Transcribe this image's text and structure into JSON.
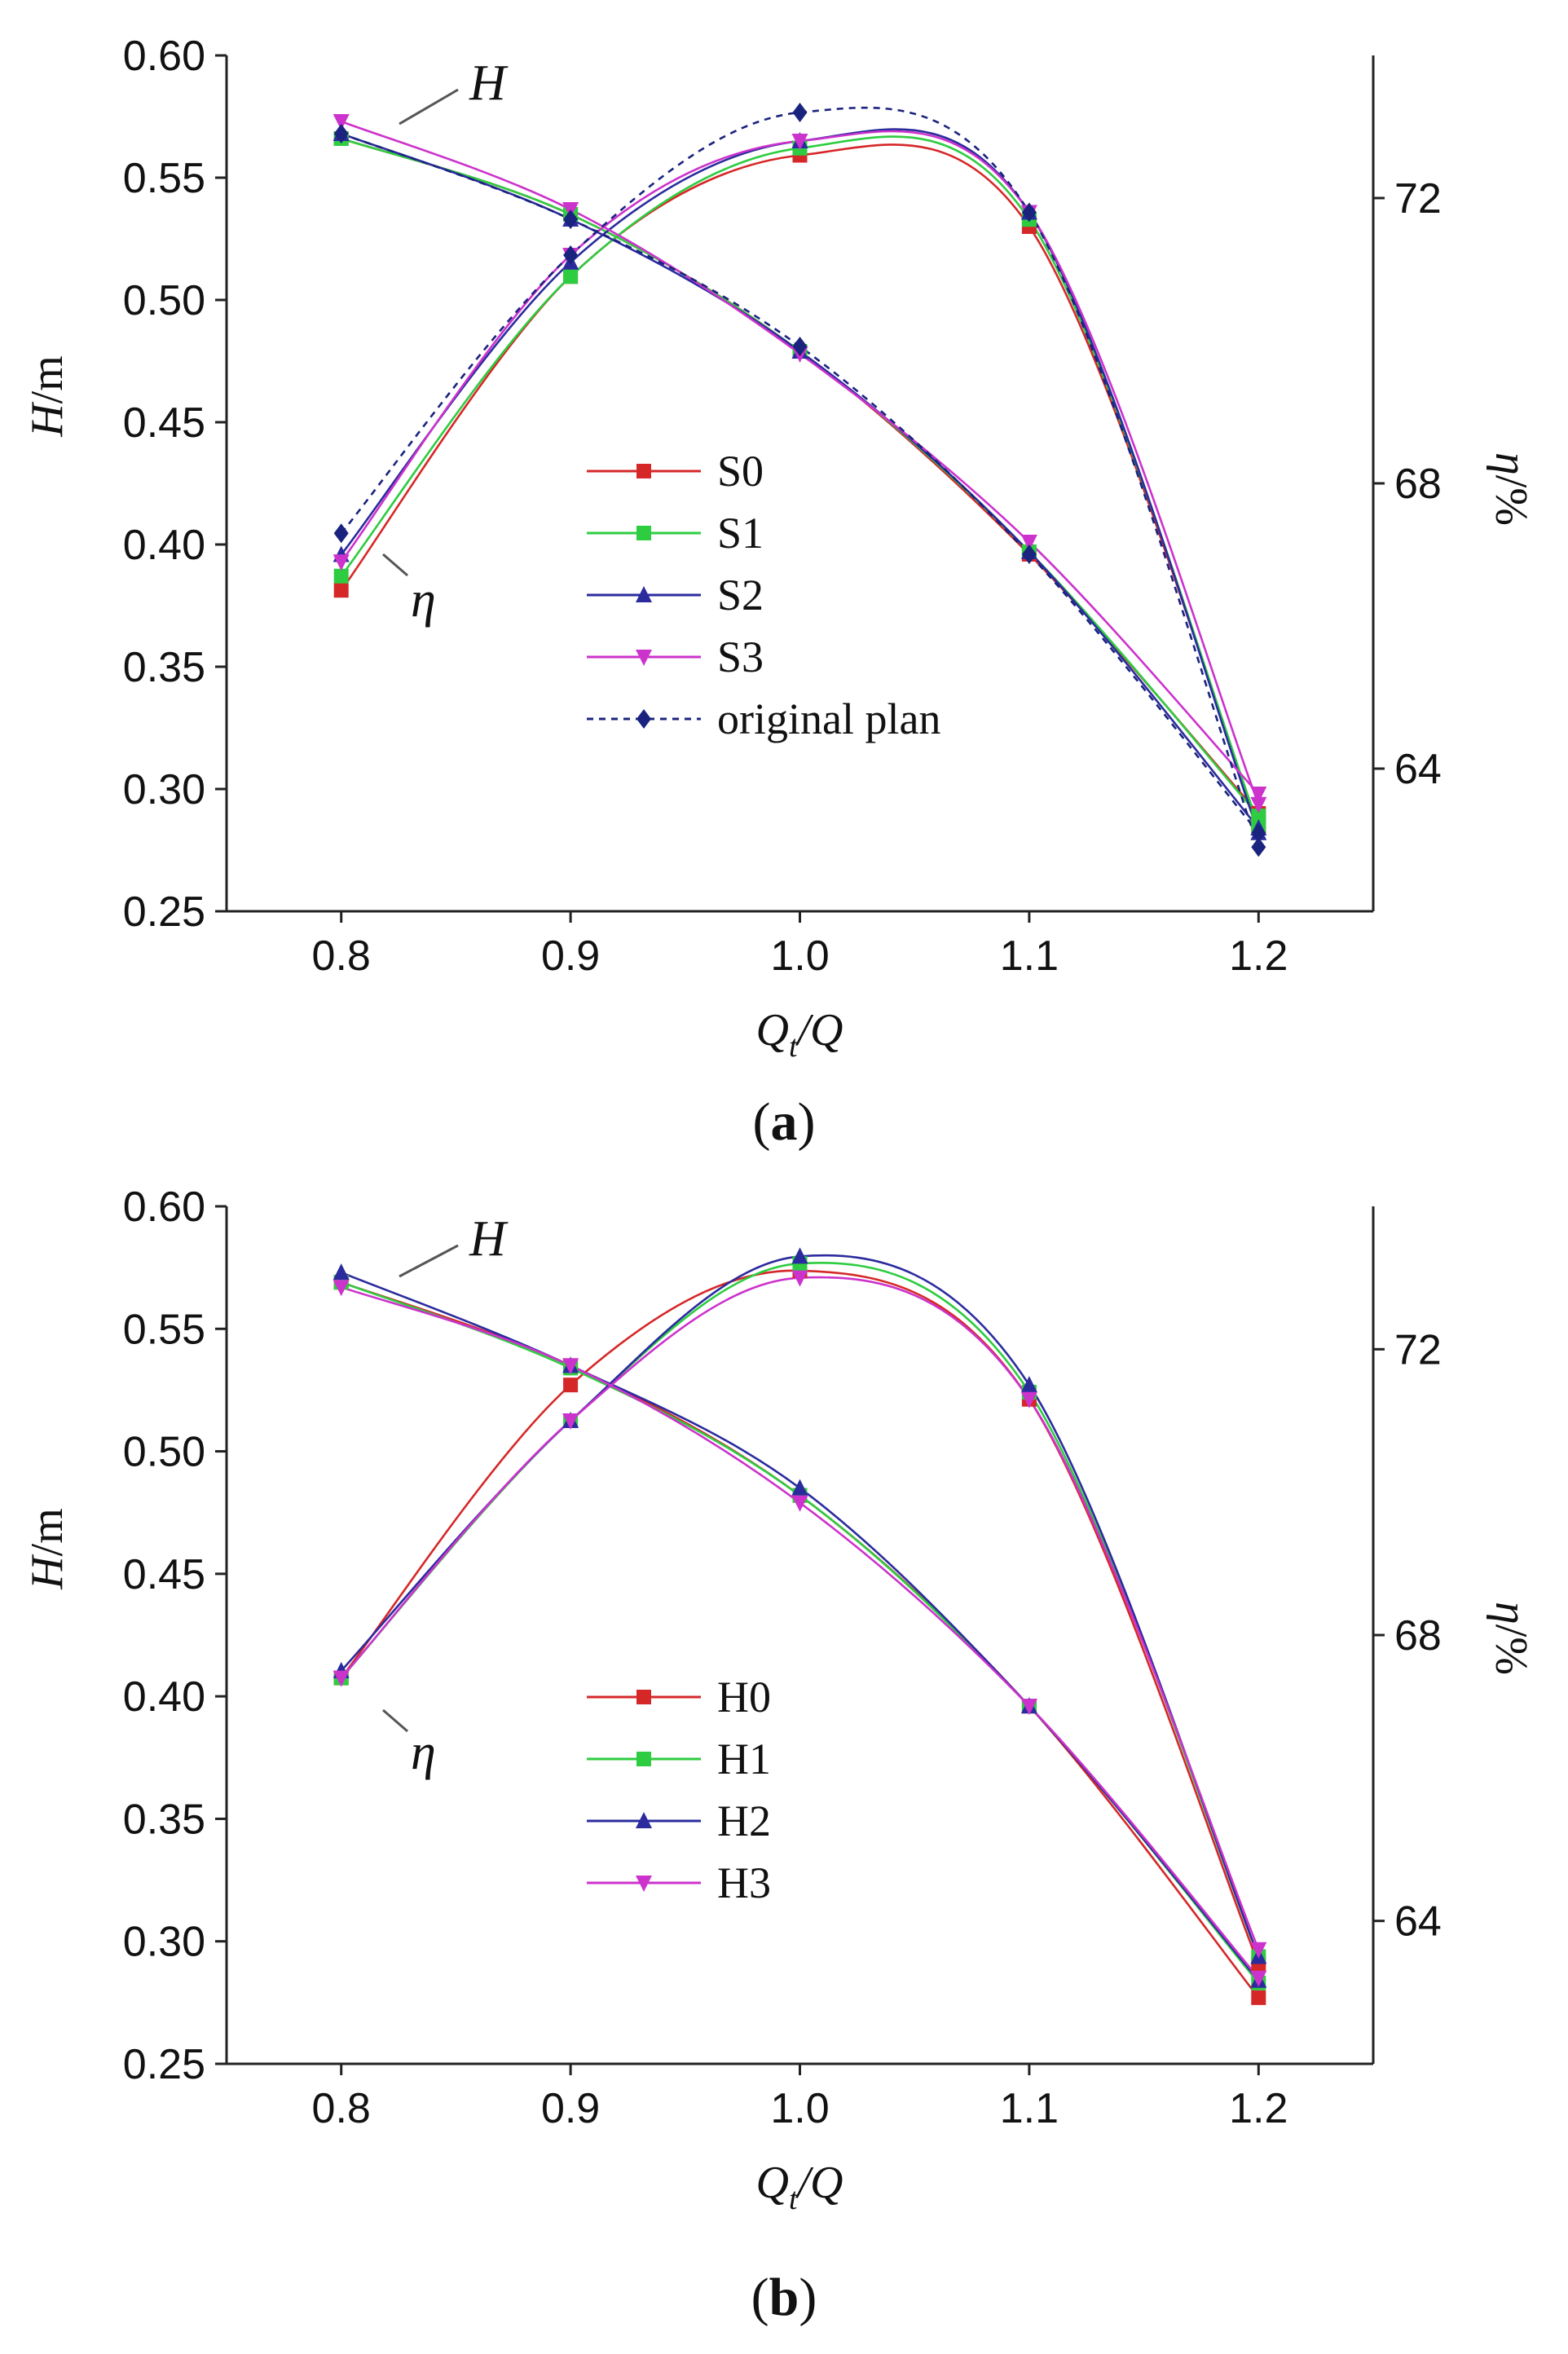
{
  "figure": {
    "panels": [
      "(a)",
      "(b)"
    ]
  },
  "chart_data": [
    {
      "type": "line",
      "panel_label": "a",
      "xlabel_main": "Q",
      "xlabel_sub": "t",
      "xlabel_rest": "/Q",
      "ylabel_var": "H",
      "ylabel_unit": "/m",
      "y2label_var": "η",
      "y2label_unit": "/%",
      "x": [
        0.8,
        0.9,
        1.0,
        1.1,
        1.2
      ],
      "x_ticks": [
        "0.8",
        "0.9",
        "1.0",
        "1.1",
        "1.2"
      ],
      "xlim": [
        0.75,
        1.25
      ],
      "ylim": [
        0.25,
        0.6
      ],
      "y_ticks": [
        "0.60",
        "0.55",
        "0.50",
        "0.45",
        "0.40",
        "0.35",
        "0.30",
        "0.25"
      ],
      "y2lim": [
        62,
        74
      ],
      "y2_ticks": [
        "72",
        "68",
        "64"
      ],
      "annotations": {
        "head": "H",
        "efficiency": "η"
      },
      "series": [
        {
          "name": "S0",
          "color": "#d62728",
          "marker": "square",
          "dash": false,
          "H": [
            0.566,
            0.535,
            0.479,
            0.396,
            0.29
          ],
          "eta": [
            66.5,
            70.9,
            72.6,
            71.6,
            63.2
          ]
        },
        {
          "name": "S1",
          "color": "#2ecc40",
          "marker": "square",
          "dash": false,
          "H": [
            0.566,
            0.535,
            0.479,
            0.397,
            0.289
          ],
          "eta": [
            66.7,
            70.9,
            72.7,
            71.7,
            63.2
          ]
        },
        {
          "name": "S2",
          "color": "#2b2b9e",
          "marker": "triangle",
          "dash": false,
          "H": [
            0.568,
            0.533,
            0.479,
            0.397,
            0.284
          ],
          "eta": [
            67.0,
            71.1,
            72.8,
            71.8,
            63.1
          ]
        },
        {
          "name": "S3",
          "color": "#cc33cc",
          "marker": "triangle-down",
          "dash": false,
          "H": [
            0.573,
            0.537,
            0.478,
            0.401,
            0.298
          ],
          "eta": [
            66.9,
            71.2,
            72.8,
            71.8,
            63.5
          ]
        },
        {
          "name": "original plan",
          "color": "#1a237e",
          "marker": "diamond",
          "dash": true,
          "H": [
            0.568,
            0.533,
            0.481,
            0.396,
            0.282
          ],
          "eta": [
            67.3,
            71.2,
            73.2,
            71.8,
            62.9
          ]
        }
      ]
    },
    {
      "type": "line",
      "panel_label": "b",
      "xlabel_main": "Q",
      "xlabel_sub": "t",
      "xlabel_rest": "/Q",
      "ylabel_var": "H",
      "ylabel_unit": "/m",
      "y2label_var": "η",
      "y2label_unit": "/%",
      "x": [
        0.8,
        0.9,
        1.0,
        1.1,
        1.2
      ],
      "x_ticks": [
        "0.8",
        "0.9",
        "1.0",
        "1.1",
        "1.2"
      ],
      "xlim": [
        0.75,
        1.25
      ],
      "ylim": [
        0.25,
        0.6
      ],
      "y_ticks": [
        "0.60",
        "0.55",
        "0.50",
        "0.45",
        "0.40",
        "0.35",
        "0.30",
        "0.25"
      ],
      "y2lim": [
        62,
        74
      ],
      "y2_ticks": [
        "72",
        "68",
        "64"
      ],
      "annotations": {
        "head": "H",
        "efficiency": "η"
      },
      "series": [
        {
          "name": "H0",
          "color": "#d62728",
          "marker": "square",
          "dash": false,
          "H": [
            0.569,
            0.535,
            0.482,
            0.396,
            0.277
          ],
          "eta": [
            67.4,
            71.5,
            73.1,
            71.3,
            63.4
          ]
        },
        {
          "name": "H1",
          "color": "#2ecc40",
          "marker": "square",
          "dash": false,
          "H": [
            0.569,
            0.534,
            0.482,
            0.396,
            0.283
          ],
          "eta": [
            67.4,
            71.0,
            73.2,
            71.4,
            63.5
          ]
        },
        {
          "name": "H2",
          "color": "#2b2b9e",
          "marker": "triangle",
          "dash": false,
          "H": [
            0.573,
            0.535,
            0.485,
            0.396,
            0.284
          ],
          "eta": [
            67.5,
            71.0,
            73.3,
            71.5,
            63.5
          ]
        },
        {
          "name": "H3",
          "color": "#cc33cc",
          "marker": "triangle-down",
          "dash": false,
          "H": [
            0.567,
            0.535,
            0.479,
            0.396,
            0.285
          ],
          "eta": [
            67.4,
            71.0,
            73.0,
            71.3,
            63.6
          ]
        }
      ]
    }
  ]
}
